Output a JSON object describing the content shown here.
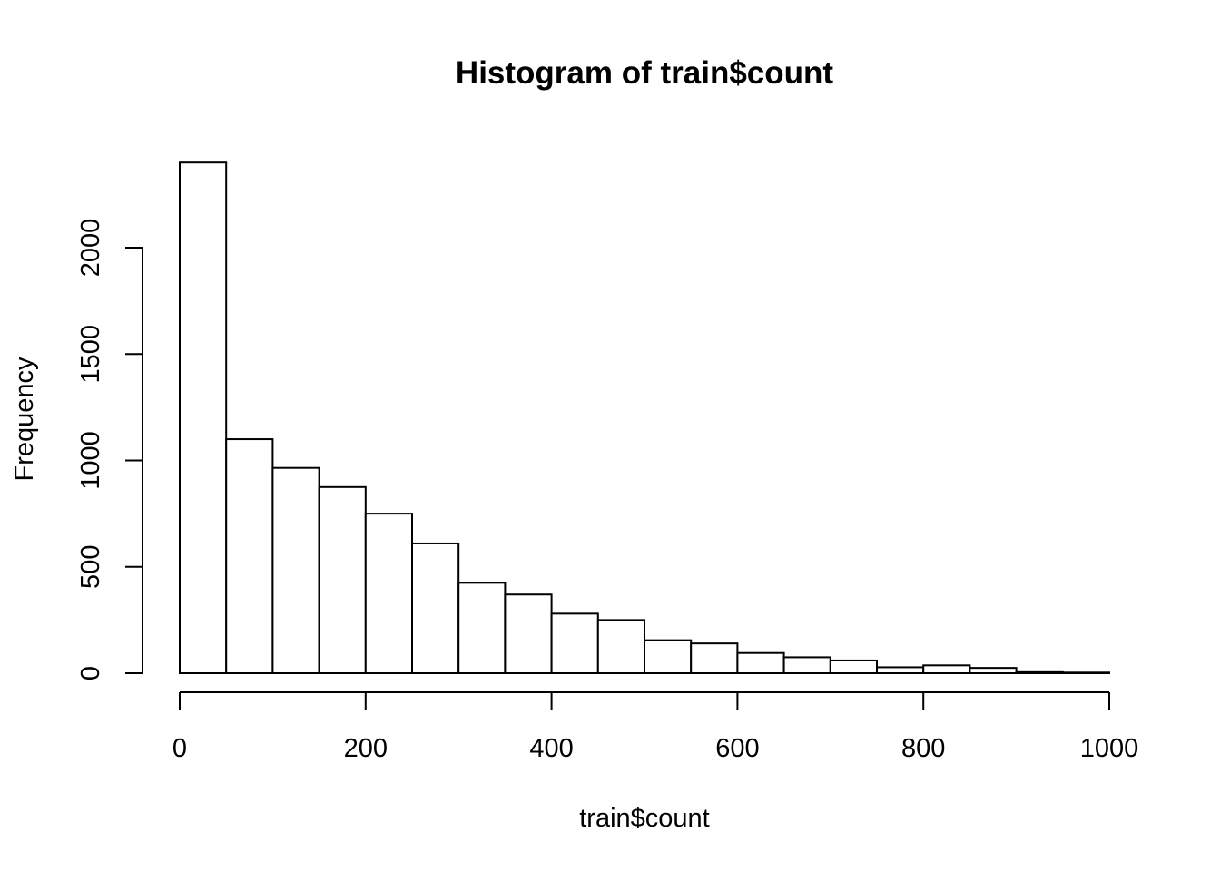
{
  "chart_data": {
    "type": "bar",
    "title": "Histogram of train$count",
    "xlabel": "train$count",
    "ylabel": "Frequency",
    "bin_edges": [
      0,
      50,
      100,
      150,
      200,
      250,
      300,
      350,
      400,
      450,
      500,
      550,
      600,
      650,
      700,
      750,
      800,
      850,
      900,
      950,
      1000
    ],
    "values": [
      2400,
      1100,
      965,
      875,
      750,
      610,
      425,
      370,
      280,
      250,
      155,
      140,
      95,
      75,
      60,
      28,
      37,
      25,
      5,
      3
    ],
    "xlim": [
      0,
      1000
    ],
    "ylim": [
      0,
      2400
    ],
    "x_ticks": [
      0,
      200,
      400,
      600,
      800,
      1000
    ],
    "x_tick_labels": [
      "0",
      "200",
      "400",
      "600",
      "800",
      "1000"
    ],
    "y_ticks": [
      0,
      500,
      1000,
      1500,
      2000
    ],
    "y_tick_labels": [
      "0",
      "500",
      "1000",
      "1500",
      "2000"
    ],
    "grid": false,
    "colors": {
      "bar_fill": "#ffffff",
      "bar_stroke": "#000000",
      "axis": "#000000",
      "text": "#000000"
    }
  }
}
